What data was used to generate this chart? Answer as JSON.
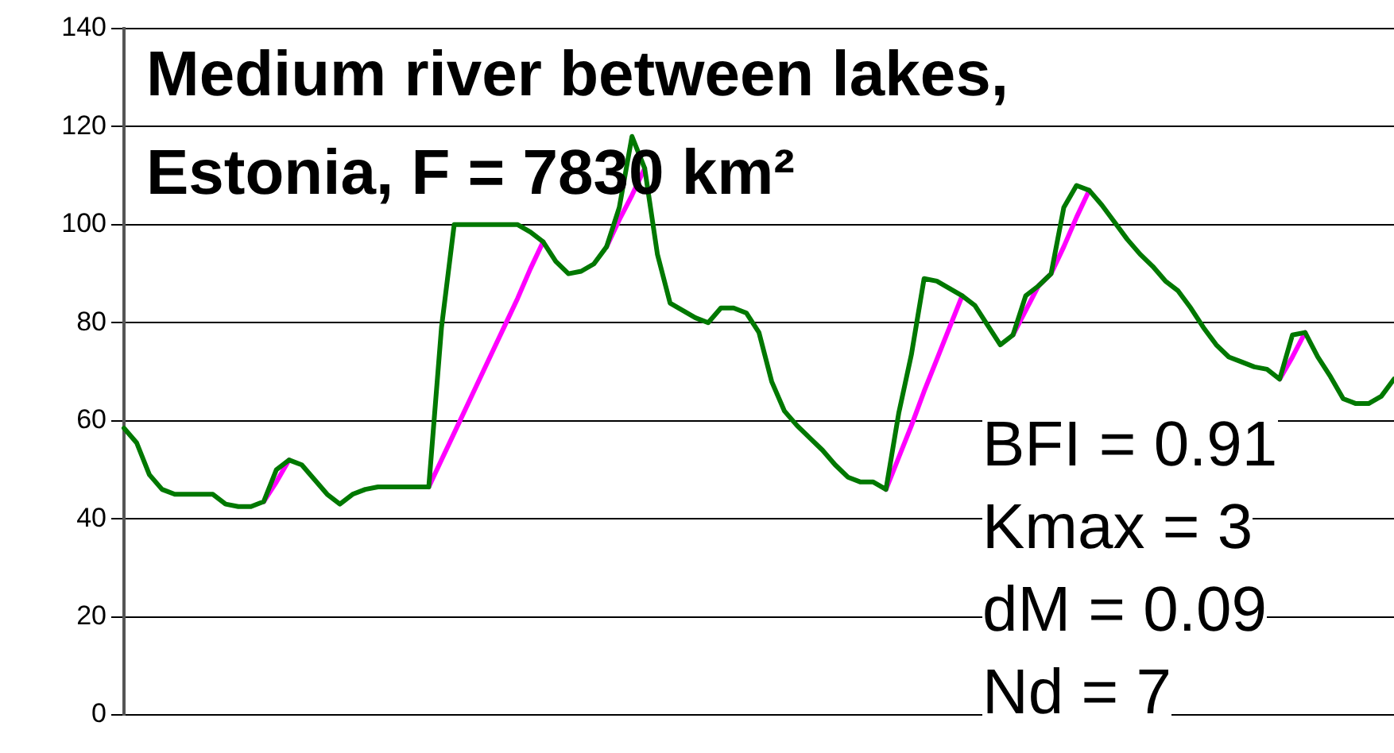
{
  "chart_data": {
    "type": "line",
    "title": "Medium river between lakes,\nEstonia, F = 7830 km²",
    "categories": [
      null,
      null,
      null,
      null,
      null,
      null,
      null,
      null,
      null,
      null,
      null,
      null,
      null,
      null,
      null,
      null,
      null,
      null,
      null,
      null,
      null,
      null,
      null,
      null,
      null,
      null,
      null,
      null,
      null,
      null,
      null,
      null,
      null,
      null,
      null,
      null,
      null,
      null,
      null,
      null,
      null,
      null,
      null,
      null,
      null,
      null,
      null,
      null,
      null,
      null,
      null,
      null,
      null,
      null,
      null,
      null,
      null,
      null,
      null,
      null,
      null,
      null,
      null,
      null,
      null,
      null,
      null,
      null,
      null,
      null,
      null,
      null,
      null,
      null,
      null,
      null,
      null,
      null,
      null,
      null,
      null,
      null,
      null,
      null,
      null,
      null,
      null,
      null,
      null,
      null,
      null,
      null,
      null,
      null,
      null,
      null,
      null,
      null,
      null,
      null,
      null
    ],
    "series": [
      {
        "color": "#007800",
        "values": [
          58.5,
          55.5,
          49,
          46,
          45,
          45,
          45,
          45,
          43,
          42.5,
          42.5,
          43.5,
          50,
          52,
          51,
          48,
          45,
          43,
          45,
          46,
          46.5,
          46.5,
          46.5,
          46.5,
          46.5,
          79,
          100,
          100,
          100,
          100,
          100,
          100,
          98.5,
          96.5,
          92.5,
          90,
          90.5,
          92,
          95.5,
          103.5,
          118,
          111.5,
          94,
          84,
          82.5,
          81,
          80,
          83,
          83,
          82,
          78,
          68,
          62,
          59,
          56.5,
          54,
          51,
          48.5,
          47.5,
          47.5,
          46,
          61.5,
          73.5,
          89,
          88.5,
          87,
          85.5,
          83.5,
          79.5,
          75.5,
          77.5,
          85.5,
          87.5,
          90,
          103.5,
          108,
          107,
          104,
          100.5,
          97,
          94,
          91.5,
          88.5,
          86.5,
          83,
          79,
          75.5,
          73,
          72,
          71,
          70.5,
          68.5,
          77.5,
          78,
          73,
          69,
          64.5,
          63.5,
          63.5,
          65,
          68.5
        ]
      },
      {
        "color": "#ff00ff",
        "values": [
          null,
          null,
          null,
          null,
          null,
          null,
          null,
          null,
          null,
          null,
          null,
          43.5,
          47.5,
          52,
          null,
          null,
          null,
          null,
          null,
          null,
          null,
          null,
          null,
          null,
          46.5,
          52,
          57.5,
          63,
          68.5,
          74,
          79.5,
          85,
          91,
          96.5,
          null,
          null,
          null,
          null,
          95.5,
          101,
          106,
          111.5,
          null,
          null,
          null,
          null,
          null,
          null,
          null,
          null,
          null,
          null,
          null,
          null,
          null,
          null,
          null,
          null,
          null,
          null,
          46,
          52.5,
          59,
          66,
          72.5,
          79,
          85.5,
          null,
          null,
          null,
          77.5,
          82.5,
          87.5,
          90,
          95.5,
          101.5,
          107,
          null,
          null,
          null,
          null,
          null,
          null,
          null,
          null,
          null,
          null,
          null,
          null,
          null,
          null,
          68.5,
          73,
          78,
          null,
          null,
          null,
          null,
          null,
          null,
          null
        ]
      }
    ],
    "ylim": [
      0,
      140
    ],
    "yticks": [
      0,
      20,
      40,
      60,
      80,
      100,
      120,
      140
    ],
    "grid": "y",
    "legend": false,
    "marker": "none",
    "line_style": "solid",
    "tick_labels": "y",
    "annotations": [
      "BFI = 0.91",
      "Kmax = 3",
      "dM = 0.09",
      "Nd = 7"
    ]
  }
}
